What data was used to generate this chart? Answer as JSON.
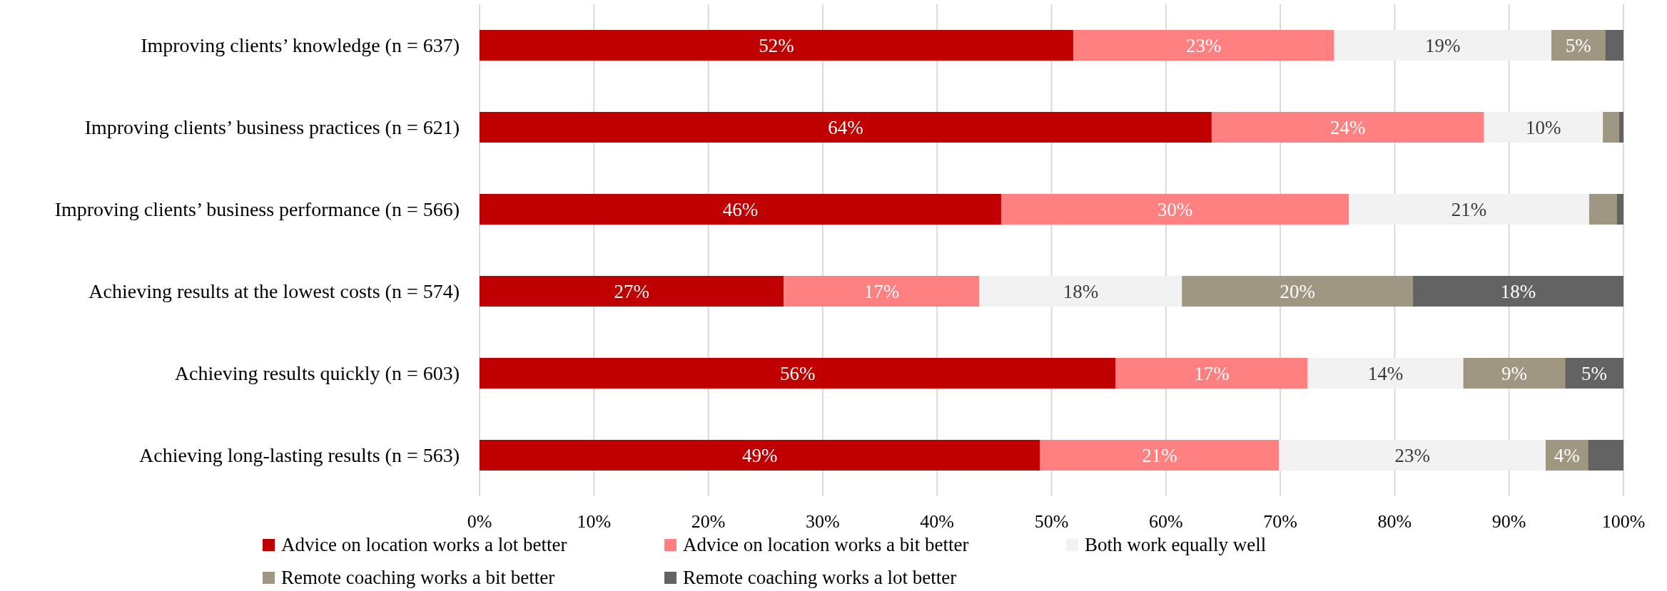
{
  "chart_data": {
    "type": "bar",
    "orientation": "horizontal",
    "stacked": true,
    "categories": [
      "Improving clients’ knowledge (n = 637)",
      "Improving clients’ business practices (n = 621)",
      "Improving clients’ business performance (n = 566)",
      "Achieving results at the lowest costs (n = 574)",
      "Achieving results quickly (n = 603)",
      "Achieving long-lasting results (n = 563)"
    ],
    "series": [
      {
        "name": "Advice on location works a lot better",
        "color": "#c00000",
        "values": [
          51.9,
          64.0,
          45.6,
          26.6,
          55.6,
          49.0
        ],
        "value_labels": [
          "52%",
          "64%",
          "46%",
          "27%",
          "56%",
          "49%"
        ]
      },
      {
        "name": "Advice on location works a bit better",
        "color": "#ff8080",
        "values": [
          22.8,
          23.8,
          30.4,
          17.1,
          16.8,
          20.9
        ],
        "value_labels": [
          "23%",
          "24%",
          "30%",
          "17%",
          "17%",
          "21%"
        ]
      },
      {
        "name": "Both work equally well",
        "color": "#f2f2f2",
        "values": [
          19.0,
          10.4,
          21.0,
          17.7,
          13.6,
          23.3
        ],
        "value_labels": [
          "19%",
          "10%",
          "21%",
          "18%",
          "14%",
          "23%"
        ]
      },
      {
        "name": "Remote coaching works a bit better",
        "color": "#a09783",
        "values": [
          4.7,
          1.4,
          2.4,
          20.2,
          8.9,
          3.7
        ],
        "value_labels": [
          "5%",
          null,
          null,
          "20%",
          "9%",
          "4%"
        ]
      },
      {
        "name": "Remote coaching works a lot better",
        "color": "#636363",
        "values": [
          1.6,
          0.4,
          0.6,
          18.4,
          5.1,
          3.1
        ],
        "value_labels": [
          null,
          null,
          null,
          "18%",
          "5%",
          null
        ]
      }
    ],
    "xlim": [
      0,
      100
    ],
    "xticks": [
      {
        "value": 0,
        "label": "0%"
      },
      {
        "value": 10,
        "label": "10%"
      },
      {
        "value": 20,
        "label": "20%"
      },
      {
        "value": 30,
        "label": "30%"
      },
      {
        "value": 40,
        "label": "40%"
      },
      {
        "value": 50,
        "label": "50%"
      },
      {
        "value": 60,
        "label": "60%"
      },
      {
        "value": 70,
        "label": "70%"
      },
      {
        "value": 80,
        "label": "80%"
      },
      {
        "value": 90,
        "label": "90%"
      },
      {
        "value": 100,
        "label": "100%"
      }
    ],
    "grid": "x",
    "legend": "bottom"
  }
}
